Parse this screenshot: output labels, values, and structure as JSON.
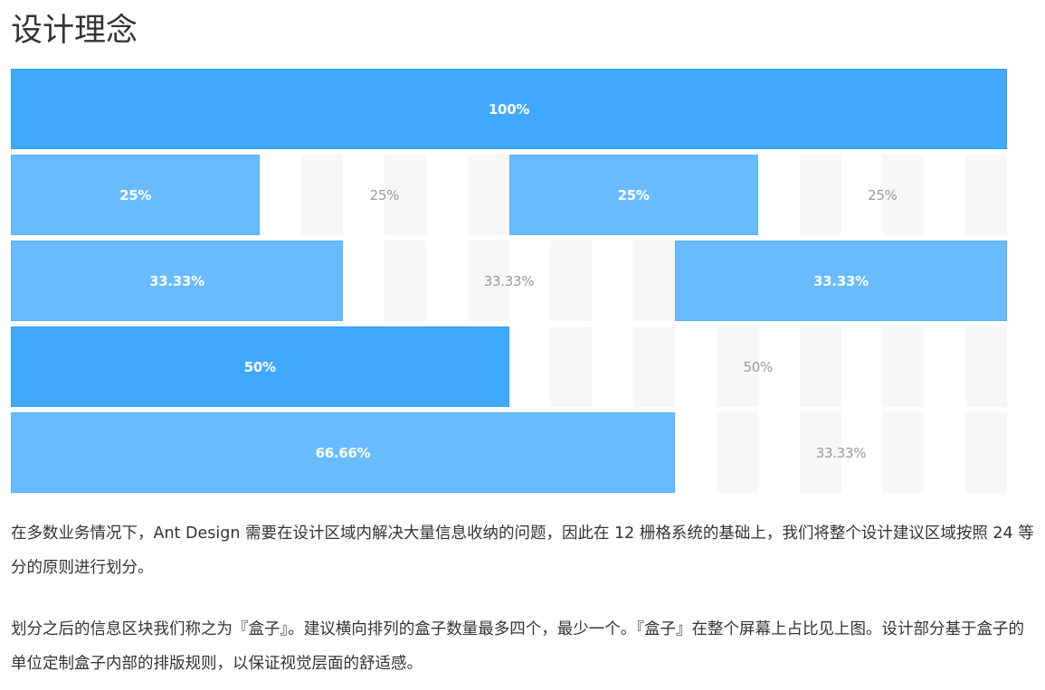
{
  "title": "设计理念",
  "grid": {
    "rows": [
      {
        "cells": [
          {
            "label": "100%",
            "span": 24,
            "filled": true,
            "tone": "dark"
          }
        ]
      },
      {
        "cells": [
          {
            "label": "25%",
            "span": 6,
            "filled": true,
            "tone": "light"
          },
          {
            "label": "25%",
            "span": 6,
            "filled": false
          },
          {
            "label": "25%",
            "span": 6,
            "filled": true,
            "tone": "light"
          },
          {
            "label": "25%",
            "span": 6,
            "filled": false
          }
        ]
      },
      {
        "cells": [
          {
            "label": "33.33%",
            "span": 8,
            "filled": true,
            "tone": "light"
          },
          {
            "label": "33.33%",
            "span": 8,
            "filled": false
          },
          {
            "label": "33.33%",
            "span": 8,
            "filled": true,
            "tone": "light"
          }
        ]
      },
      {
        "cells": [
          {
            "label": "50%",
            "span": 12,
            "filled": true,
            "tone": "dark"
          },
          {
            "label": "50%",
            "span": 12,
            "filled": false
          }
        ]
      },
      {
        "cells": [
          {
            "label": "66.66%",
            "span": 16,
            "filled": true,
            "tone": "light"
          },
          {
            "label": "33.33%",
            "span": 8,
            "filled": false
          }
        ]
      }
    ]
  },
  "paragraphs": [
    "在多数业务情况下，Ant Design 需要在设计区域内解决大量信息收纳的问题，因此在 12 栅格系统的基础上，我们将整个设计建议区域按照 24 等分的原则进行划分。",
    "划分之后的信息区块我们称之为『盒子』。建议横向排列的盒子数量最多四个，最少一个。『盒子』在整个屏幕上占比见上图。设计部分基于盒子的单位定制盒子内部的排版规则，以保证视觉层面的舒适感。"
  ],
  "colors": {
    "box_dark": "#40a9ff",
    "box_light": "#69bbff",
    "gutter_column": "#f7f7f7",
    "empty_label": "#999999",
    "text": "#333333"
  }
}
